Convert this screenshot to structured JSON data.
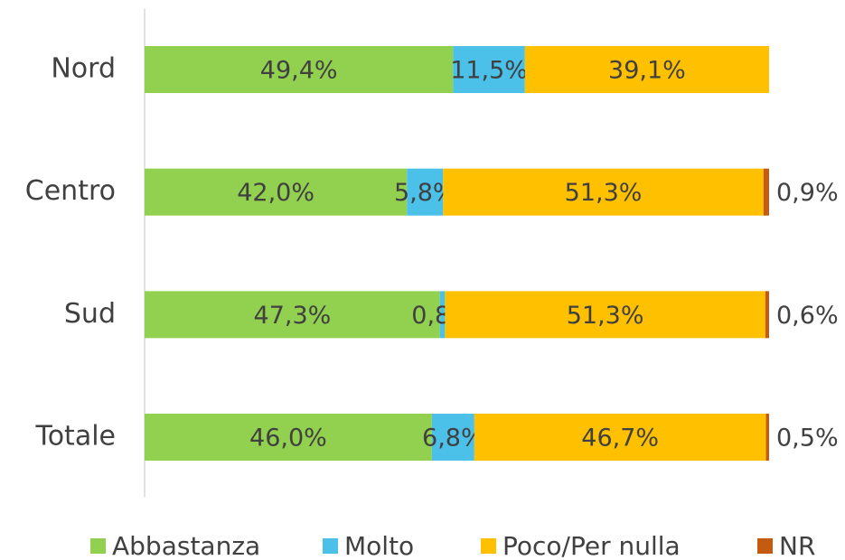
{
  "chart_data": {
    "type": "bar",
    "orientation": "horizontal",
    "stacked": true,
    "categories": [
      "Nord",
      "Centro",
      "Sud",
      "Totale"
    ],
    "series": [
      {
        "name": "Abbastanza",
        "color": "#92d050",
        "values": [
          49.4,
          42.0,
          47.3,
          46.0
        ],
        "value_labels": [
          "49,4%",
          "42,0%",
          "47,3%",
          "46,0%"
        ]
      },
      {
        "name": "Molto",
        "color": "#4bc0e8",
        "values": [
          11.5,
          5.8,
          0.8,
          6.8
        ],
        "value_labels": [
          "11,5%",
          "5,8%",
          "0,8%",
          "6,8%"
        ]
      },
      {
        "name": "Poco/Per nulla",
        "color": "#ffc000",
        "values": [
          39.1,
          51.3,
          51.3,
          46.7
        ],
        "value_labels": [
          "39,1%",
          "51,3%",
          "51,3%",
          "46,7%"
        ]
      },
      {
        "name": "NR",
        "color": "#c55a11",
        "values": [
          null,
          0.9,
          0.6,
          0.5
        ],
        "value_labels": [
          null,
          "0,9%",
          "0,6%",
          "0,5%"
        ]
      }
    ],
    "legend": "bottom"
  }
}
